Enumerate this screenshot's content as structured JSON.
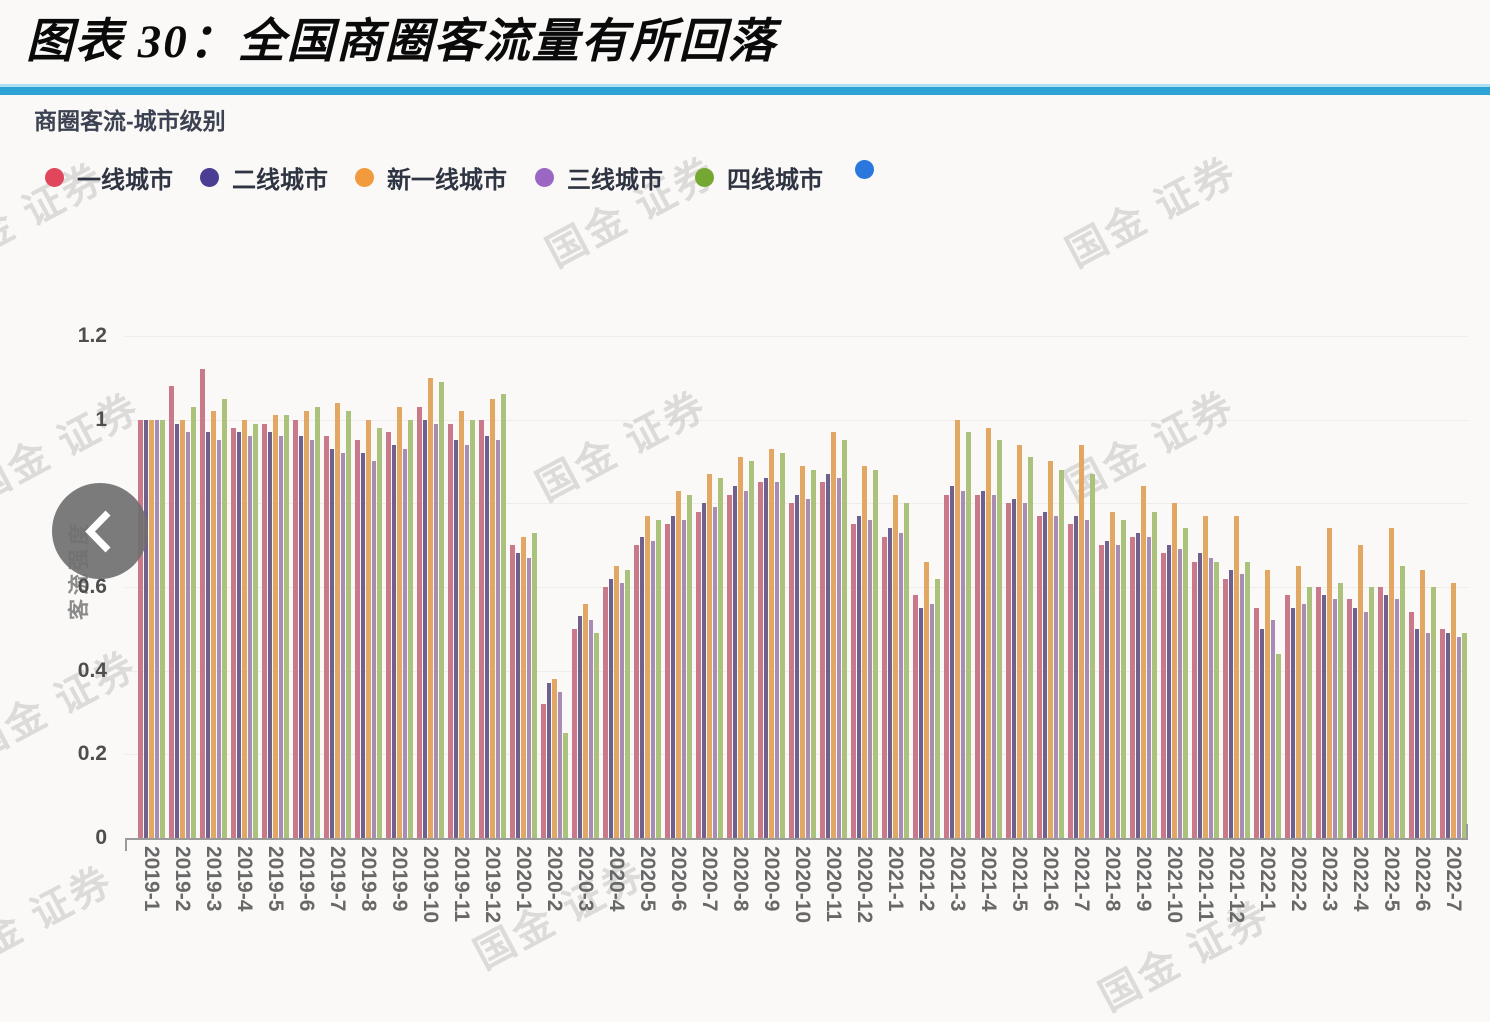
{
  "header": {
    "title": "图表 30：全国商圈客流量有所回落"
  },
  "chart": {
    "subtitle": "商圈客流-城市级别",
    "watermark_text": "国金 证券",
    "legend": [
      {
        "label": "一线城市",
        "color": "#e0475c"
      },
      {
        "label": "二线城市",
        "color": "#4b3d94"
      },
      {
        "label": "新一线城市",
        "color": "#f19a3e"
      },
      {
        "label": "三线城市",
        "color": "#9a67c5"
      },
      {
        "label": "四线城市",
        "color": "#74a832"
      },
      {
        "label": "",
        "color": "#2a77dd"
      }
    ],
    "nav": {
      "prev_icon": "chevron-left"
    }
  },
  "chart_data": {
    "type": "bar",
    "title": "商圈客流-城市级别",
    "xlabel": "",
    "ylabel": "客流强度",
    "ylim": [
      0,
      1.2
    ],
    "grid": true,
    "legend_position": "top",
    "yticks": [
      {
        "v": 0,
        "label": "0"
      },
      {
        "v": 0.2,
        "label": "0.2"
      },
      {
        "v": 0.4,
        "label": "0.4"
      },
      {
        "v": 0.6,
        "label": "0.6"
      },
      {
        "v": 0.8,
        "label": ""
      },
      {
        "v": 1.0,
        "label": "1"
      },
      {
        "v": 1.2,
        "label": "1.2"
      }
    ],
    "categories": [
      "2019-1",
      "2019-2",
      "2019-3",
      "2019-4",
      "2019-5",
      "2019-6",
      "2019-7",
      "2019-8",
      "2019-9",
      "2019-10",
      "2019-11",
      "2019-12",
      "2020-1",
      "2020-2",
      "2020-3",
      "2020-4",
      "2020-5",
      "2020-6",
      "2020-7",
      "2020-8",
      "2020-9",
      "2020-10",
      "2020-11",
      "2020-12",
      "2021-1",
      "2021-2",
      "2021-3",
      "2021-4",
      "2021-5",
      "2021-6",
      "2021-7",
      "2021-8",
      "2021-9",
      "2021-10",
      "2021-11",
      "2021-12",
      "2022-1",
      "2022-2",
      "2022-3",
      "2022-4",
      "2022-5",
      "2022-6",
      "2022-7"
    ],
    "series": [
      {
        "name": "一线城市",
        "color": "#c9798a",
        "values": [
          1.0,
          1.08,
          1.12,
          0.98,
          0.99,
          1.0,
          0.96,
          0.95,
          0.97,
          1.03,
          0.99,
          1.0,
          0.7,
          0.32,
          0.5,
          0.6,
          0.7,
          0.75,
          0.78,
          0.82,
          0.85,
          0.8,
          0.85,
          0.75,
          0.72,
          0.58,
          0.82,
          0.82,
          0.8,
          0.77,
          0.75,
          0.7,
          0.72,
          0.68,
          0.66,
          0.62,
          0.55,
          0.58,
          0.6,
          0.57,
          0.6,
          0.54,
          0.5
        ]
      },
      {
        "name": "二线城市",
        "color": "#70608e",
        "values": [
          1.0,
          0.99,
          0.97,
          0.97,
          0.97,
          0.96,
          0.93,
          0.92,
          0.94,
          1.0,
          0.95,
          0.96,
          0.68,
          0.37,
          0.53,
          0.62,
          0.72,
          0.77,
          0.8,
          0.84,
          0.86,
          0.82,
          0.87,
          0.77,
          0.74,
          0.55,
          0.84,
          0.83,
          0.81,
          0.78,
          0.77,
          0.71,
          0.73,
          0.7,
          0.68,
          0.64,
          0.5,
          0.55,
          0.58,
          0.55,
          0.58,
          0.5,
          0.49
        ]
      },
      {
        "name": "新一线城市",
        "color": "#e2a863",
        "values": [
          1.0,
          1.0,
          1.02,
          1.0,
          1.01,
          1.02,
          1.04,
          1.0,
          1.03,
          1.1,
          1.02,
          1.05,
          0.72,
          0.38,
          0.56,
          0.65,
          0.77,
          0.83,
          0.87,
          0.91,
          0.93,
          0.89,
          0.97,
          0.89,
          0.82,
          0.66,
          1.0,
          0.98,
          0.94,
          0.9,
          0.94,
          0.78,
          0.84,
          0.8,
          0.77,
          0.77,
          0.64,
          0.65,
          0.74,
          0.7,
          0.74,
          0.64,
          0.61
        ]
      },
      {
        "name": "三线城市",
        "color": "#a88cb4",
        "values": [
          1.0,
          0.97,
          0.95,
          0.96,
          0.96,
          0.95,
          0.92,
          0.9,
          0.93,
          0.99,
          0.94,
          0.95,
          0.67,
          0.35,
          0.52,
          0.61,
          0.71,
          0.76,
          0.79,
          0.83,
          0.85,
          0.81,
          0.86,
          0.76,
          0.73,
          0.56,
          0.83,
          0.82,
          0.8,
          0.77,
          0.76,
          0.7,
          0.72,
          0.69,
          0.67,
          0.63,
          0.52,
          0.56,
          0.57,
          0.54,
          0.57,
          0.49,
          0.48
        ]
      },
      {
        "name": "四线城市",
        "color": "#abc27c",
        "values": [
          1.0,
          1.03,
          1.05,
          0.99,
          1.01,
          1.03,
          1.02,
          0.98,
          1.0,
          1.09,
          1.0,
          1.06,
          0.73,
          0.25,
          0.49,
          0.64,
          0.76,
          0.82,
          0.86,
          0.9,
          0.92,
          0.88,
          0.95,
          0.88,
          0.8,
          0.62,
          0.97,
          0.95,
          0.91,
          0.88,
          0.87,
          0.76,
          0.78,
          0.74,
          0.66,
          0.66,
          0.44,
          0.6,
          0.61,
          0.6,
          0.65,
          0.6,
          0.49
        ]
      }
    ]
  }
}
